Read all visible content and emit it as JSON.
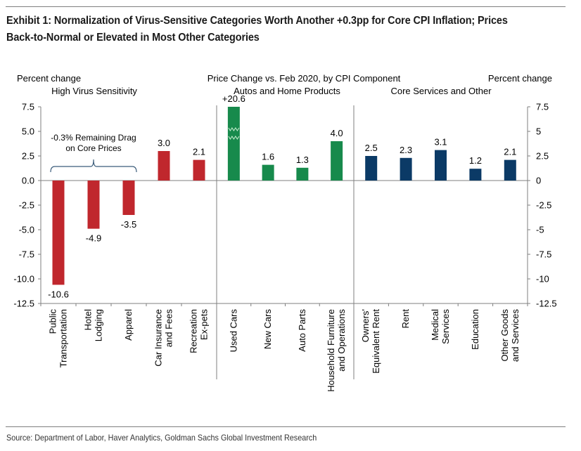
{
  "exhibit": {
    "title_line1": "Exhibit 1: Normalization of Virus-Sensitive Categories Worth Another +0.3pp for Core CPI Inflation; Prices",
    "title_line2": "Back-to-Normal or Elevated in Most Other Categories",
    "source": "Source: Department of Labor, Haver Analytics, Goldman Sachs Global Investment Research"
  },
  "colors": {
    "high_virus": "#c0272d",
    "autos_home": "#178a4c",
    "core_services": "#0b3a66",
    "axis": "#7f7f7f"
  },
  "chart_data": {
    "type": "bar",
    "title": "Price Change vs. Feb 2020, by CPI  Component",
    "ylabel_left": "Percent change",
    "ylabel_right": "Percent change",
    "ylim": [
      -12.5,
      7.5
    ],
    "yticks_left": [
      "7.5",
      "5.0",
      "2.5",
      "0.0",
      "-2.5",
      "-5.0",
      "-7.5",
      "-10.0",
      "-12.5"
    ],
    "yticks_right": [
      "7.5",
      "5",
      "2.5",
      "0",
      "-2.5",
      "-5",
      "-7.5",
      "-10",
      "-12.5"
    ],
    "ytick_values": [
      7.5,
      5,
      2.5,
      0,
      -2.5,
      -5,
      -7.5,
      -10,
      -12.5
    ],
    "grid": false,
    "groups": [
      {
        "name": "High Virus Sensitivity",
        "color_key": "high_virus",
        "start": 0,
        "count": 5
      },
      {
        "name": "Autos and Home Products",
        "color_key": "autos_home",
        "start": 5,
        "count": 4
      },
      {
        "name": "Core Services and Other",
        "color_key": "core_services",
        "start": 9,
        "count": 5
      }
    ],
    "categories": [
      [
        "Public",
        "Transportation"
      ],
      [
        "Hotel",
        "Lodging"
      ],
      [
        "Apparel"
      ],
      [
        "Car Insurance",
        "and Fees"
      ],
      [
        "Recreation",
        "Ex-pets"
      ],
      [
        "Used Cars"
      ],
      [
        "New Cars"
      ],
      [
        "Auto Parts"
      ],
      [
        "Household Furniture",
        "and Operations"
      ],
      [
        "Owners'",
        "Equivalent Rent"
      ],
      [
        "Rent"
      ],
      [
        "Medical",
        "Services"
      ],
      [
        "Education"
      ],
      [
        "Other Goods",
        "and Services"
      ]
    ],
    "values": [
      -10.6,
      -4.9,
      -3.5,
      3.0,
      2.1,
      20.6,
      1.6,
      1.3,
      4.0,
      2.5,
      2.3,
      3.1,
      1.2,
      2.1
    ],
    "data_labels": [
      "-10.6",
      "-4.9",
      "-3.5",
      "3.0",
      "2.1",
      "+20.6",
      "1.6",
      "1.3",
      "4.0",
      "2.5",
      "2.3",
      "3.1",
      "1.2",
      "2.1"
    ],
    "truncated_bars": [
      5
    ],
    "annotations": [
      {
        "text_line1": "-0.3% Remaining Drag",
        "text_line2": "on Core Prices",
        "bracket_over_categories": [
          0,
          2
        ]
      }
    ]
  }
}
